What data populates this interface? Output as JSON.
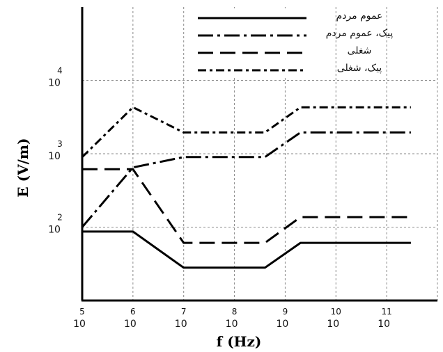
{
  "chart_data": {
    "type": "line",
    "xlabel": "f (Hz)",
    "ylabel": "E (V/m)",
    "x_scale": "log",
    "y_scale": "log",
    "xlim": [
      100000,
      1000000000000
    ],
    "ylim": [
      10,
      100000
    ],
    "x_ticks": [
      {
        "value": 100000,
        "base": "10",
        "exp": "5"
      },
      {
        "value": 1000000,
        "base": "10",
        "exp": "6"
      },
      {
        "value": 10000000,
        "base": "10",
        "exp": "7"
      },
      {
        "value": 100000000,
        "base": "10",
        "exp": "8"
      },
      {
        "value": 1000000000,
        "base": "10",
        "exp": "9"
      },
      {
        "value": 10000000000,
        "base": "10",
        "exp": "10"
      },
      {
        "value": 100000000000,
        "base": "10",
        "exp": "11"
      }
    ],
    "y_ticks": [
      {
        "value": 100,
        "base": "10",
        "exp": "2"
      },
      {
        "value": 1000,
        "base": "10",
        "exp": "3"
      },
      {
        "value": 10000,
        "base": "10",
        "exp": "4"
      }
    ],
    "grid": true,
    "legend_position": "top-right",
    "series": [
      {
        "name": "عموم مردم",
        "style": "solid",
        "x": [
          100000,
          1000000,
          10000000,
          400000000,
          2000000000,
          300000000000
        ],
        "y": [
          87,
          87,
          28,
          28,
          61,
          61
        ]
      },
      {
        "name": "پیک، عموم مردم",
        "style": "dashdot",
        "x": [
          100000,
          1000000,
          10000000,
          400000000,
          2000000000,
          300000000000
        ],
        "y": [
          100,
          650,
          900,
          900,
          1950,
          1950
        ]
      },
      {
        "name": "شغلی",
        "style": "dash",
        "x": [
          100000,
          1000000,
          10000000,
          400000000,
          2000000000,
          300000000000
        ],
        "y": [
          614,
          614,
          61,
          61,
          137,
          137
        ]
      },
      {
        "name": "پیک، شغلی",
        "style": "dashdotdot",
        "x": [
          100000,
          1000000,
          10000000,
          400000000,
          2000000000,
          300000000000
        ],
        "y": [
          900,
          4300,
          1950,
          1950,
          4300,
          4300
        ]
      }
    ]
  }
}
